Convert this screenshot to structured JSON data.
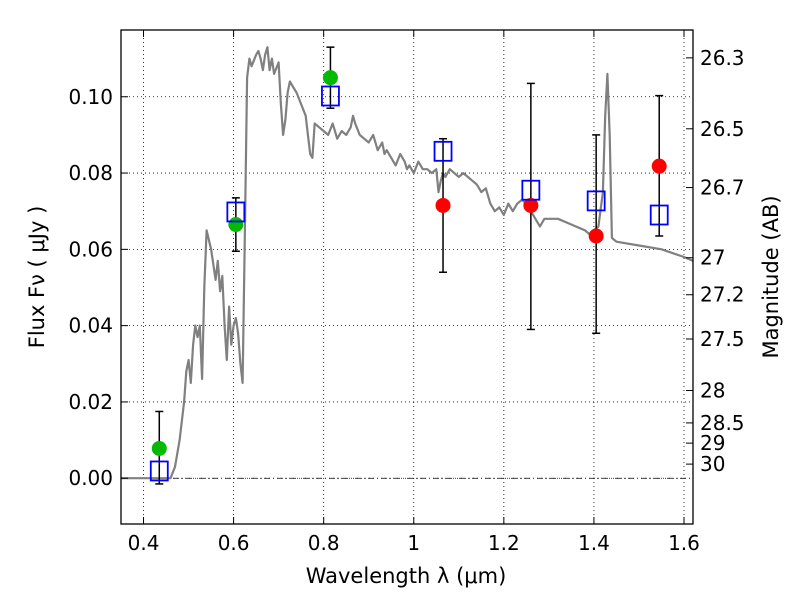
{
  "chart_data": {
    "type": "scatter",
    "xlabel": "Wavelength  λ (μm)",
    "ylabel": "Flux  Fν  ( μJy )",
    "y2label": "Magnitude (AB)",
    "xlim": [
      0.35,
      1.62
    ],
    "ylim": [
      -0.012,
      0.1175
    ],
    "grid": "dotted",
    "x_ticks": [
      0.4,
      0.6,
      0.8,
      1.0,
      1.2,
      1.4,
      1.6
    ],
    "x_tick_labels": [
      "0.4",
      "0.6",
      "0.8",
      "1",
      "1.2",
      "1.4",
      "1.6"
    ],
    "y_ticks": [
      0.0,
      0.02,
      0.04,
      0.06,
      0.08,
      0.1
    ],
    "y_tick_labels": [
      "0.00",
      "0.02",
      "0.04",
      "0.06",
      "0.08",
      "0.10"
    ],
    "mag_ticks": [
      {
        "label": "26.3",
        "flux": 0.1102
      },
      {
        "label": "26.5",
        "flux": 0.0916
      },
      {
        "label": "26.7",
        "flux": 0.0762
      },
      {
        "label": "27",
        "flux": 0.0578
      },
      {
        "label": "27.2",
        "flux": 0.0481
      },
      {
        "label": "27.5",
        "flux": 0.0365
      },
      {
        "label": "28",
        "flux": 0.023
      },
      {
        "label": "28.5",
        "flux": 0.0145
      },
      {
        "label": "29",
        "flux": 0.0092
      },
      {
        "label": "30",
        "flux": 0.0037
      }
    ],
    "series": [
      {
        "kind": "line",
        "color": "#808080",
        "points": [
          [
            0.35,
            0.0
          ],
          [
            0.46,
            0.0
          ],
          [
            0.47,
            0.003
          ],
          [
            0.48,
            0.01
          ],
          [
            0.49,
            0.02
          ],
          [
            0.495,
            0.028
          ],
          [
            0.5,
            0.031
          ],
          [
            0.505,
            0.025
          ],
          [
            0.51,
            0.035
          ],
          [
            0.515,
            0.04
          ],
          [
            0.52,
            0.037
          ],
          [
            0.525,
            0.04
          ],
          [
            0.53,
            0.026
          ],
          [
            0.535,
            0.05
          ],
          [
            0.54,
            0.065
          ],
          [
            0.55,
            0.06
          ],
          [
            0.56,
            0.052
          ],
          [
            0.565,
            0.057
          ],
          [
            0.57,
            0.049
          ],
          [
            0.575,
            0.053
          ],
          [
            0.58,
            0.04
          ],
          [
            0.585,
            0.031
          ],
          [
            0.59,
            0.045
          ],
          [
            0.595,
            0.035
          ],
          [
            0.6,
            0.04
          ],
          [
            0.605,
            0.042
          ],
          [
            0.61,
            0.038
          ],
          [
            0.615,
            0.03
          ],
          [
            0.62,
            0.025
          ],
          [
            0.625,
            0.065
          ],
          [
            0.63,
            0.105
          ],
          [
            0.635,
            0.11
          ],
          [
            0.64,
            0.108
          ],
          [
            0.65,
            0.111
          ],
          [
            0.655,
            0.112
          ],
          [
            0.66,
            0.11
          ],
          [
            0.665,
            0.107
          ],
          [
            0.67,
            0.111
          ],
          [
            0.675,
            0.113
          ],
          [
            0.68,
            0.107
          ],
          [
            0.685,
            0.11
          ],
          [
            0.69,
            0.106
          ],
          [
            0.7,
            0.109
          ],
          [
            0.705,
            0.098
          ],
          [
            0.71,
            0.09
          ],
          [
            0.715,
            0.094
          ],
          [
            0.72,
            0.101
          ],
          [
            0.725,
            0.104
          ],
          [
            0.73,
            0.103
          ],
          [
            0.74,
            0.101
          ],
          [
            0.75,
            0.098
          ],
          [
            0.76,
            0.095
          ],
          [
            0.765,
            0.09
          ],
          [
            0.77,
            0.085
          ],
          [
            0.775,
            0.084
          ],
          [
            0.78,
            0.093
          ],
          [
            0.79,
            0.092
          ],
          [
            0.8,
            0.091
          ],
          [
            0.81,
            0.09
          ],
          [
            0.82,
            0.093
          ],
          [
            0.83,
            0.089
          ],
          [
            0.84,
            0.091
          ],
          [
            0.85,
            0.09
          ],
          [
            0.86,
            0.092
          ],
          [
            0.865,
            0.095
          ],
          [
            0.87,
            0.093
          ],
          [
            0.88,
            0.09
          ],
          [
            0.89,
            0.089
          ],
          [
            0.9,
            0.088
          ],
          [
            0.91,
            0.09
          ],
          [
            0.92,
            0.086
          ],
          [
            0.93,
            0.088
          ],
          [
            0.935,
            0.085
          ],
          [
            0.94,
            0.086
          ],
          [
            0.95,
            0.084
          ],
          [
            0.96,
            0.082
          ],
          [
            0.97,
            0.085
          ],
          [
            0.98,
            0.083
          ],
          [
            0.985,
            0.081
          ],
          [
            0.99,
            0.082
          ],
          [
            1.0,
            0.08
          ],
          [
            1.01,
            0.083
          ],
          [
            1.02,
            0.081
          ],
          [
            1.03,
            0.081
          ],
          [
            1.04,
            0.08
          ],
          [
            1.05,
            0.081
          ],
          [
            1.055,
            0.075
          ],
          [
            1.06,
            0.078
          ],
          [
            1.065,
            0.08
          ],
          [
            1.07,
            0.079
          ],
          [
            1.08,
            0.081
          ],
          [
            1.09,
            0.08
          ],
          [
            1.1,
            0.079
          ],
          [
            1.11,
            0.08
          ],
          [
            1.12,
            0.079
          ],
          [
            1.13,
            0.078
          ],
          [
            1.14,
            0.077
          ],
          [
            1.15,
            0.075
          ],
          [
            1.16,
            0.076
          ],
          [
            1.17,
            0.072
          ],
          [
            1.18,
            0.07
          ],
          [
            1.19,
            0.071
          ],
          [
            1.2,
            0.069
          ],
          [
            1.21,
            0.072
          ],
          [
            1.22,
            0.07
          ],
          [
            1.23,
            0.072
          ],
          [
            1.24,
            0.073
          ],
          [
            1.25,
            0.072
          ],
          [
            1.26,
            0.07
          ],
          [
            1.27,
            0.068
          ],
          [
            1.28,
            0.066
          ],
          [
            1.29,
            0.068
          ],
          [
            1.3,
            0.068
          ],
          [
            1.32,
            0.068
          ],
          [
            1.34,
            0.067
          ],
          [
            1.36,
            0.066
          ],
          [
            1.38,
            0.065
          ],
          [
            1.39,
            0.064
          ],
          [
            1.4,
            0.065
          ],
          [
            1.41,
            0.066
          ],
          [
            1.42,
            0.075
          ],
          [
            1.425,
            0.095
          ],
          [
            1.43,
            0.106
          ],
          [
            1.435,
            0.09
          ],
          [
            1.44,
            0.063
          ],
          [
            1.45,
            0.062
          ],
          [
            1.5,
            0.061
          ],
          [
            1.55,
            0.06
          ],
          [
            1.6,
            0.058
          ],
          [
            1.62,
            0.057
          ]
        ]
      },
      {
        "kind": "scatter",
        "marker": "filled-circle",
        "color": "#00bb00",
        "points": [
          [
            0.435,
            0.0078
          ],
          [
            0.605,
            0.0665
          ],
          [
            0.815,
            0.105
          ]
        ]
      },
      {
        "kind": "scatter",
        "marker": "filled-circle",
        "color": "#ff0000",
        "points": [
          [
            1.065,
            0.0715
          ],
          [
            1.26,
            0.0715
          ],
          [
            1.405,
            0.0635
          ],
          [
            1.545,
            0.0818
          ]
        ],
        "error_bars": [
          [
            1.065,
            0.054,
            0.089
          ],
          [
            1.26,
            0.039,
            0.1035
          ],
          [
            1.405,
            0.038,
            0.09
          ],
          [
            1.545,
            0.0635,
            0.1003
          ]
        ]
      },
      {
        "kind": "scatter",
        "marker": "open-square",
        "color": "#0000ff",
        "points": [
          [
            0.435,
            0.0019
          ],
          [
            0.605,
            0.0698
          ],
          [
            0.815,
            0.1002
          ],
          [
            1.065,
            0.0857
          ],
          [
            1.26,
            0.0755
          ],
          [
            1.405,
            0.0727
          ],
          [
            1.545,
            0.069
          ]
        ],
        "error_bars": [
          [
            0.435,
            -0.0015,
            0.0175
          ],
          [
            0.605,
            0.0595,
            0.0735
          ],
          [
            0.815,
            0.097,
            0.113
          ]
        ]
      }
    ]
  }
}
